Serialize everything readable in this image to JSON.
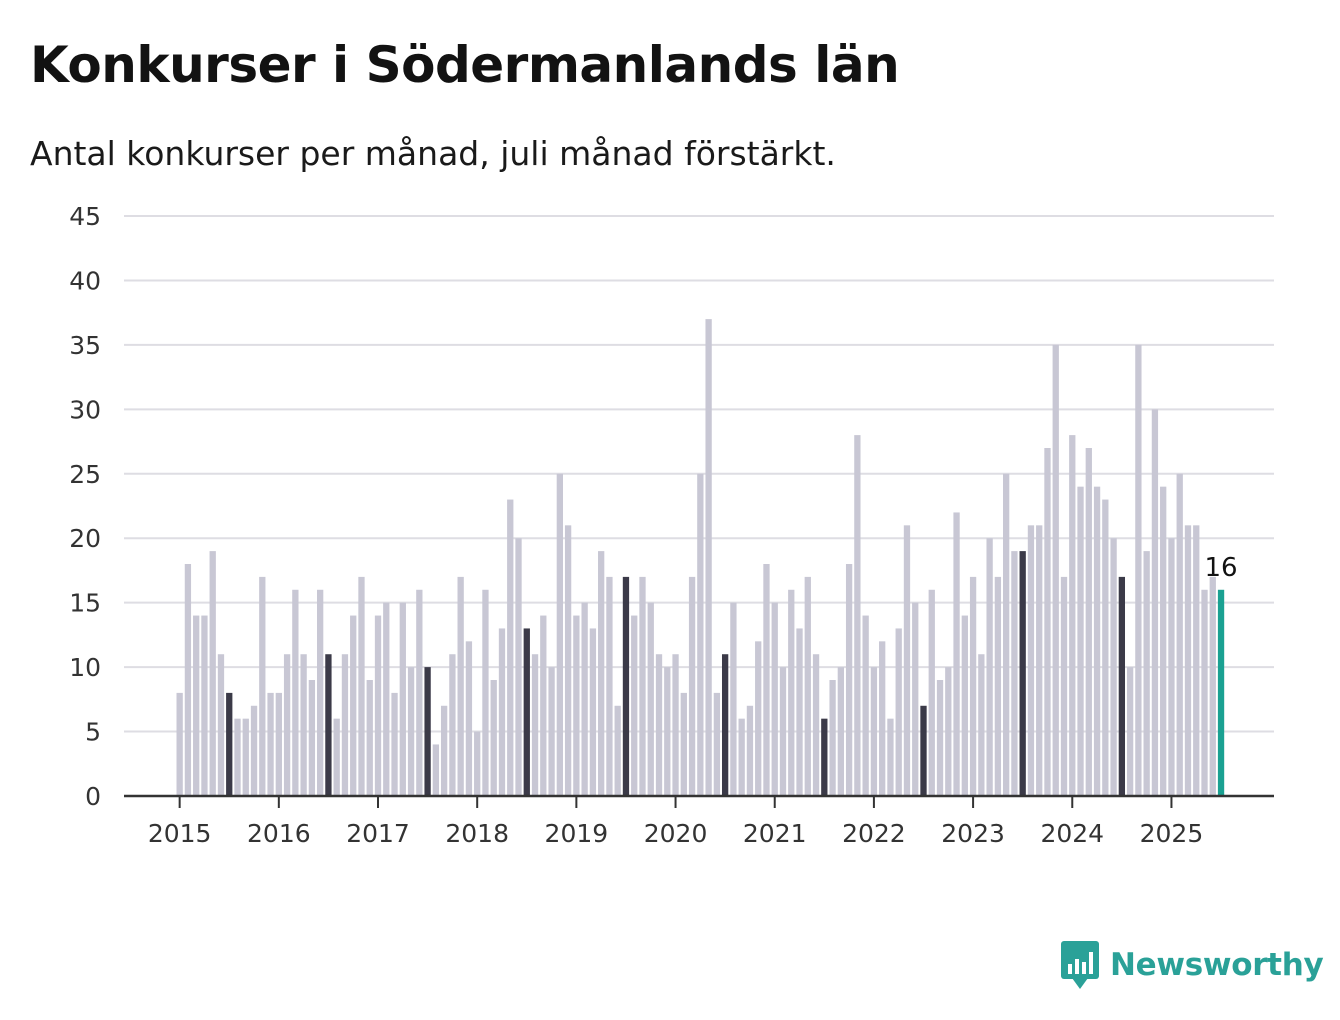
{
  "title": "Konkurser i Södermanlands län",
  "subtitle": "Antal konkurser per månad, juli månad förstärkt.",
  "brand": {
    "name": "Newsworthy",
    "color": "#2aa198"
  },
  "colors": {
    "bar": "#c8c7d4",
    "july": "#3b3a48",
    "latest": "#1aa192",
    "grid": "#dedde3",
    "axis": "#333333"
  },
  "chart_data": {
    "type": "bar",
    "title": "Konkurser i Södermanlands län",
    "subtitle": "Antal konkurser per månad, juli månad förstärkt.",
    "xlabel": "",
    "ylabel": "",
    "ylim": [
      0,
      45
    ],
    "yticks": [
      0,
      5,
      10,
      15,
      20,
      25,
      30,
      35,
      40,
      45
    ],
    "xticks": [
      "2015",
      "2016",
      "2017",
      "2018",
      "2019",
      "2020",
      "2021",
      "2022",
      "2023",
      "2024",
      "2025"
    ],
    "grid": true,
    "legend": "none",
    "start": "2015-01",
    "end": "2025-07",
    "highlight": "July of each year (dark), latest month (teal)",
    "latest_label": "16",
    "series": [
      {
        "values": [
          8,
          18,
          14,
          14,
          19,
          11,
          8,
          6,
          6,
          7,
          17,
          8,
          8,
          11,
          16,
          11,
          9,
          16,
          11,
          6,
          11,
          14,
          17,
          9,
          14,
          15,
          8,
          15,
          10,
          16,
          10,
          4,
          7,
          11,
          17,
          12,
          5,
          16,
          9,
          13,
          23,
          20,
          13,
          11,
          14,
          10,
          25,
          21,
          14,
          15,
          13,
          19,
          17,
          7,
          17,
          14,
          17,
          15,
          11,
          10,
          11,
          8,
          17,
          25,
          37,
          8,
          11,
          15,
          6,
          7,
          12,
          18,
          15,
          10,
          16,
          13,
          17,
          11,
          6,
          9,
          10,
          18,
          28,
          14,
          10,
          12,
          6,
          13,
          21,
          15,
          7,
          16,
          9,
          10,
          22,
          14,
          17,
          11,
          20,
          17,
          25,
          19,
          19,
          21,
          21,
          27,
          35,
          17,
          28,
          24,
          27,
          24,
          23,
          20,
          17,
          10,
          35,
          19,
          30,
          24,
          20,
          25,
          21,
          21,
          16,
          17,
          16
        ]
      }
    ]
  }
}
